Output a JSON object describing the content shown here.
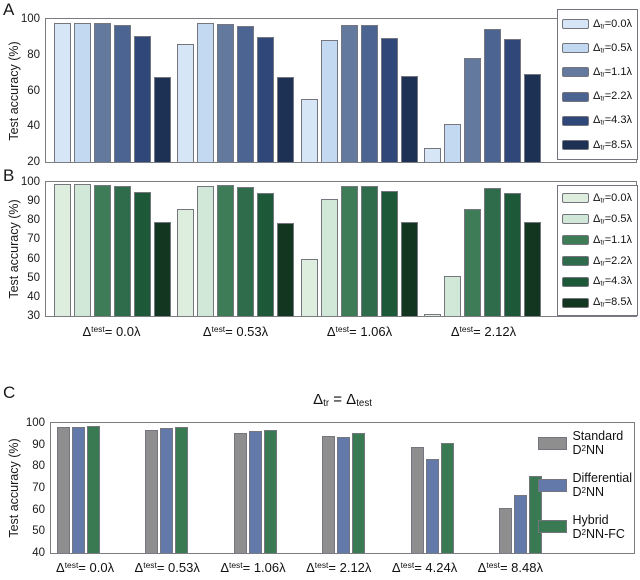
{
  "chart_data": [
    {
      "id": "panel-a",
      "panel_letter": "A",
      "type": "bar",
      "title": "",
      "ylabel": "Test accuracy (%)",
      "ylim": [
        20,
        100
      ],
      "yticks": [
        100,
        80,
        60,
        40,
        20
      ],
      "categories": [
        "Δ_{test} = 0.0λ",
        "Δ_{test} = 0.53λ",
        "Δ_{test} = 1.06λ",
        "Δ_{test} = 2.12λ"
      ],
      "category_labels_shown": false,
      "legend_position": "right-boxed",
      "grid": false,
      "series": [
        {
          "name": "Δ_{tr}=0.0λ",
          "color": "#d7e6f7",
          "values": [
            98,
            86,
            55,
            28
          ]
        },
        {
          "name": "Δ_{tr}=0.5λ",
          "color": "#c3d9f1",
          "values": [
            98,
            97.5,
            88,
            41
          ]
        },
        {
          "name": "Δ_{tr}=1.1λ",
          "color": "#64799e",
          "values": [
            97.5,
            97,
            96.5,
            78
          ]
        },
        {
          "name": "Δ_{tr}=2.2λ",
          "color": "#4c6492",
          "values": [
            96.5,
            96,
            96.5,
            94.5
          ]
        },
        {
          "name": "Δ_{tr}=4.3λ",
          "color": "#30477a",
          "values": [
            90.5,
            90,
            89.5,
            89
          ]
        },
        {
          "name": "Δ_{tr}=8.5λ",
          "color": "#1c3154",
          "values": [
            67.5,
            67.5,
            68,
            69
          ]
        }
      ]
    },
    {
      "id": "panel-b",
      "panel_letter": "B",
      "type": "bar",
      "title": "",
      "ylabel": "Test accuracy (%)",
      "ylim": [
        30,
        100
      ],
      "yticks": [
        100,
        90,
        80,
        70,
        60,
        50,
        40,
        30
      ],
      "categories": [
        "Δ_{test} = 0.0λ",
        "Δ_{test} = 0.53λ",
        "Δ_{test} = 1.06λ",
        "Δ_{test} = 2.12λ"
      ],
      "category_labels_shown": true,
      "legend_position": "right-boxed",
      "grid": false,
      "series": [
        {
          "name": "Δ_{tr}=0.0λ",
          "color": "#ddeede",
          "values": [
            99,
            86,
            60,
            31
          ]
        },
        {
          "name": "Δ_{tr}=0.5λ",
          "color": "#d1e7d7",
          "values": [
            99,
            98,
            91,
            51
          ]
        },
        {
          "name": "Δ_{tr}=1.1λ",
          "color": "#3e7c57",
          "values": [
            98.5,
            98.5,
            98,
            86
          ]
        },
        {
          "name": "Δ_{tr}=2.2λ",
          "color": "#2e6c4b",
          "values": [
            98,
            97.5,
            98,
            97
          ]
        },
        {
          "name": "Δ_{tr}=4.3λ",
          "color": "#1d5839",
          "values": [
            95,
            94.5,
            95.5,
            94.5
          ]
        },
        {
          "name": "Δ_{tr}=8.5λ",
          "color": "#133620",
          "values": [
            79,
            78.5,
            79,
            79
          ]
        }
      ]
    },
    {
      "id": "panel-c",
      "panel_letter": "C",
      "type": "bar",
      "title": "Δ_{tr} = Δ_{test}",
      "ylabel": "Test accuracy (%)",
      "ylim": [
        40,
        100
      ],
      "yticks": [
        100,
        90,
        80,
        70,
        60,
        50,
        40
      ],
      "categories": [
        "Δ_{test} = 0.0λ",
        "Δ_{test} = 0.53λ",
        "Δ_{test} = 1.06λ",
        "Δ_{test} = 2.12λ",
        "Δ_{test} = 4.24λ",
        "Δ_{test} = 8.48λ"
      ],
      "category_labels_shown": true,
      "legend_position": "right-inside",
      "grid": false,
      "series": [
        {
          "name": "Standard D^{2}NN",
          "legend_lines": [
            "Standard",
            "D^{2}NN"
          ],
          "color": "#8e8e8e",
          "values": [
            98,
            97,
            95.5,
            94,
            89,
            61
          ]
        },
        {
          "name": "Differential D^{2}NN",
          "legend_lines": [
            "Differential",
            "D^{2}NN"
          ],
          "color": "#6379a9",
          "values": [
            98,
            97.5,
            96.5,
            93.5,
            83.5,
            67
          ]
        },
        {
          "name": "Hybrid D^{2}NN-FC",
          "legend_lines": [
            "Hybrid",
            "D^{2}NN-FC"
          ],
          "color": "#397a52",
          "values": [
            98.5,
            98,
            97,
            95.5,
            91,
            75.5
          ]
        }
      ]
    }
  ]
}
